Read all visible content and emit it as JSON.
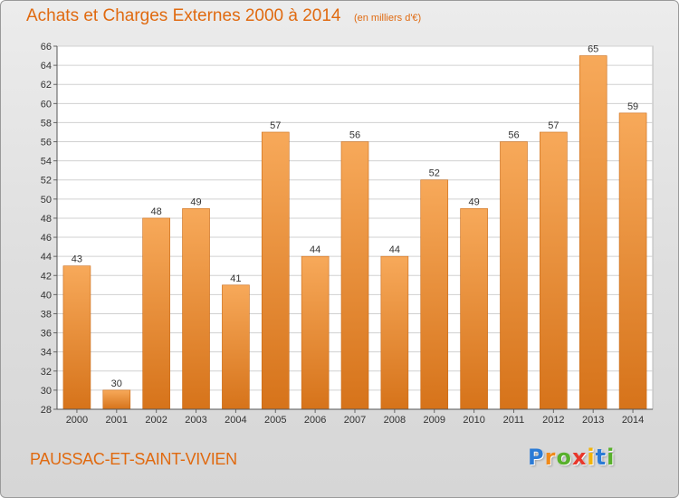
{
  "header": {
    "title": "Achats et Charges Externes 2000 à 2014",
    "unit": "(en milliers d'€)"
  },
  "footer": {
    "commune": "PAUSSAC-ET-SAINT-VIVIEN",
    "logo_letters": [
      "P",
      "r",
      "o",
      "x",
      "i",
      "t",
      "i"
    ],
    "logo_colors": [
      "#2b7bd6",
      "#f08a1a",
      "#58b02c",
      "#e8372b",
      "#f2b40a",
      "#2b7bd6",
      "#58b02c"
    ]
  },
  "colors": {
    "bar_light": "#f7a95a",
    "bar_dark": "#d6731a",
    "accent": "#e06a10",
    "plot_bg": "#ffffff",
    "grid": "#d0d0d0"
  },
  "chart_data": {
    "type": "bar",
    "categories": [
      "2000",
      "2001",
      "2002",
      "2003",
      "2004",
      "2005",
      "2006",
      "2007",
      "2008",
      "2009",
      "2010",
      "2011",
      "2012",
      "2013",
      "2014"
    ],
    "values": [
      43,
      30,
      48,
      49,
      41,
      57,
      44,
      56,
      44,
      52,
      49,
      56,
      57,
      65,
      59
    ],
    "title": "Achats et Charges Externes 2000 à 2014",
    "ylim": [
      28,
      66
    ],
    "y_ticks": [
      "28",
      "30",
      "32",
      "34",
      "36",
      "38",
      "40",
      "42",
      "44",
      "46",
      "48",
      "50",
      "52",
      "54",
      "56",
      "58",
      "60",
      "62",
      "64",
      "66"
    ],
    "grid": true,
    "legend": "none"
  }
}
